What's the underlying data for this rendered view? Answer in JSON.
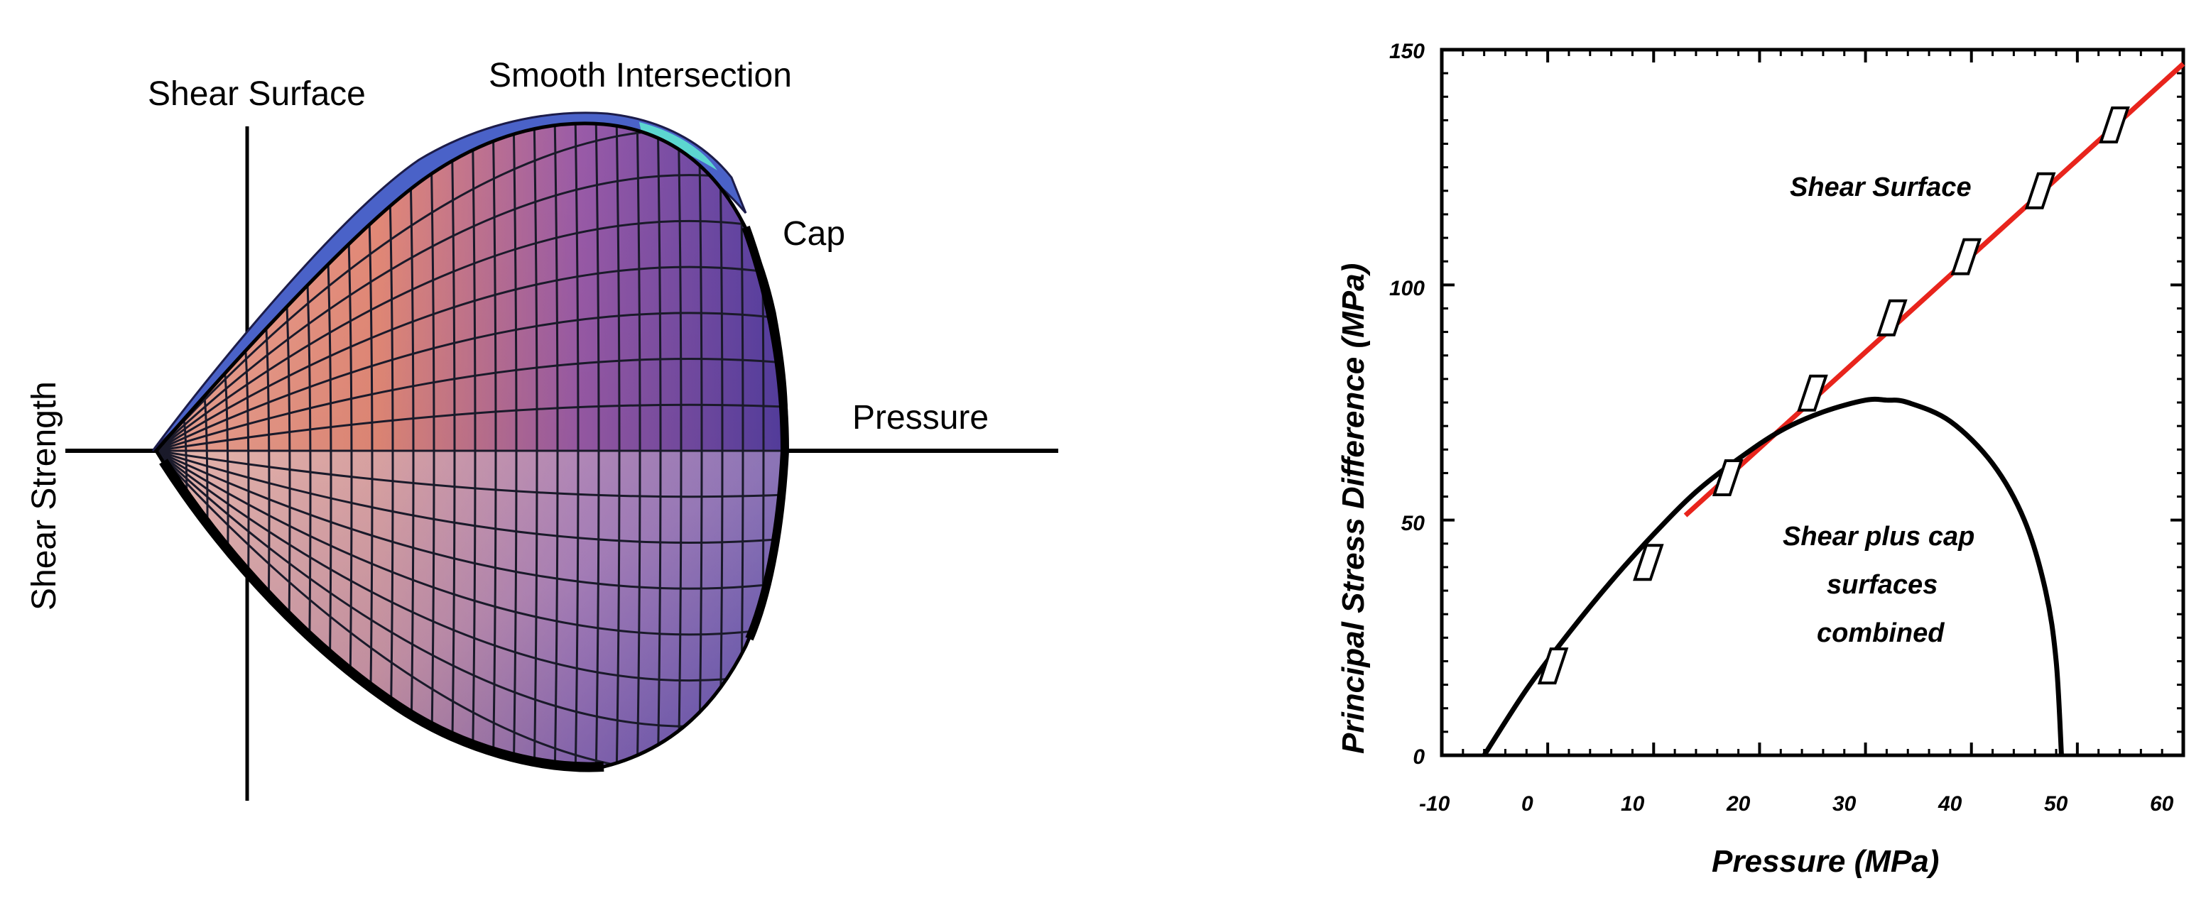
{
  "surface_diagram": {
    "labels": {
      "shear_surface": "Shear Surface",
      "smooth_intersection": "Smooth Intersection",
      "cap": "Cap",
      "pressure": "Pressure",
      "shear_strength": "Shear Strength"
    },
    "colors": {
      "warm_face": "#e8866c",
      "cool_face": "#5a3f9a",
      "upper_rim": "#4a62c8",
      "highlight": "#5cd6d0"
    }
  },
  "chart_data": {
    "type": "line",
    "xlabel": "Pressure (MPa)",
    "ylabel": "Principal Stress Difference (MPa)",
    "xlim": [
      -10,
      60
    ],
    "ylim": [
      0,
      150
    ],
    "xticks": [
      -10,
      0,
      10,
      20,
      30,
      40,
      50,
      60
    ],
    "yticks": [
      0,
      50,
      100,
      150
    ],
    "tick_labels_x": [
      "-10",
      "0",
      "10",
      "20",
      "30",
      "40",
      "50",
      "60"
    ],
    "tick_labels_y": [
      "0",
      "50",
      "100",
      "150"
    ],
    "series": [
      {
        "name": "Shear Surface",
        "color": "#e8241c",
        "x": [
          13,
          60
        ],
        "y": [
          51,
          147
        ]
      },
      {
        "name": "Shear plus cap surfaces combined",
        "color": "#000000",
        "x": [
          -6,
          -2,
          2,
          6,
          10,
          14,
          18,
          22,
          26,
          30,
          32,
          34,
          38,
          42,
          45,
          47,
          48,
          48.5
        ],
        "y": [
          0,
          14,
          26,
          37,
          47,
          56,
          63,
          69,
          73,
          75.5,
          75.5,
          75,
          71,
          62,
          50,
          35,
          20,
          0
        ]
      }
    ],
    "markers": {
      "shape": "parallelogram",
      "x": [
        0.5,
        9.5,
        17,
        25,
        32.5,
        39.5,
        46.5,
        53.5
      ],
      "y": [
        19,
        41,
        59,
        77,
        93,
        106,
        120,
        134
      ]
    },
    "annotations": [
      {
        "text": "Shear Surface",
        "lines": [
          "Shear Surface"
        ]
      },
      {
        "text": "Shear plus cap surfaces combined",
        "lines": [
          "Shear plus cap",
          "surfaces",
          "combined"
        ]
      }
    ]
  }
}
